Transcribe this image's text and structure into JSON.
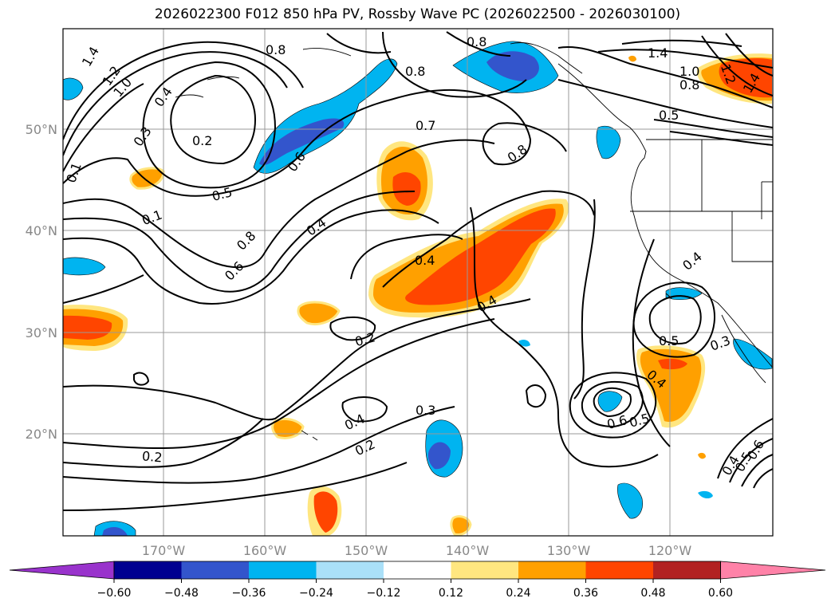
{
  "title": "2026022300 F012 850 hPa PV, Rossby Wave PC (2026022500 - 2026030100)",
  "lat_ticks": [
    "50°N",
    "40°N",
    "30°N",
    "20°N"
  ],
  "lon_ticks": [
    "170°W",
    "160°W",
    "150°W",
    "140°W",
    "130°W",
    "120°W"
  ],
  "colorbar": {
    "ticks": [
      "−0.60",
      "−0.48",
      "−0.36",
      "−0.24",
      "−0.12",
      "0.12",
      "0.24",
      "0.36",
      "0.48",
      "0.60"
    ],
    "colors": [
      "#9933cc",
      "#000090",
      "#3355cc",
      "#00b4f0",
      "#aae0f8",
      "#ffffff",
      "#ffe680",
      "#ffa000",
      "#ff4500",
      "#b22222",
      "#ff82a8"
    ]
  },
  "contour_labels": [
    "1.4",
    "1.2",
    "1.0",
    "0.4",
    "0.3",
    "0.2",
    "0.8",
    "0.8",
    "0.8",
    "0.6",
    "0.7",
    "0.8",
    "0.5",
    "0.1",
    "0.8",
    "0.6",
    "0.4",
    "0.4",
    "0.4",
    "0.2",
    "0.4",
    "0.3",
    "0.2",
    "0.2",
    "0.6",
    "0.5",
    "0.5",
    "0.4",
    "0.4",
    "0.3",
    "0.4",
    "0.5",
    "0.6",
    "1.4",
    "1.0",
    "0.8",
    "0.5",
    "1.4",
    "1.2",
    "0.1"
  ],
  "colors": {
    "grid": "#999999",
    "contour": "#000000",
    "border": "#000000"
  }
}
